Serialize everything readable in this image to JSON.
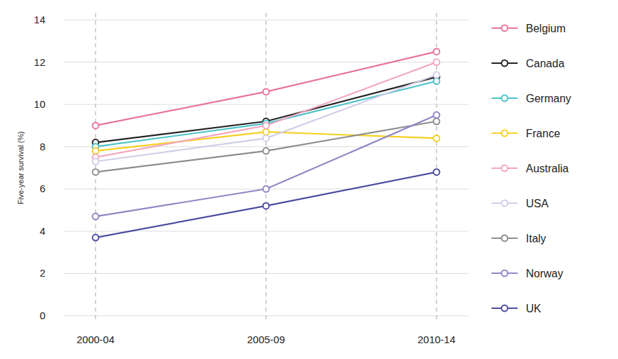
{
  "chart_data": {
    "type": "line",
    "y_label": "Five-year survival (%)",
    "categories": [
      "2000-04",
      "2005-09",
      "2010-14"
    ],
    "series": [
      {
        "name": "Belgium",
        "color": "#e8739a",
        "values": [
          9.0,
          10.6,
          12.5
        ]
      },
      {
        "name": "Canada",
        "color": "#222222",
        "values": [
          8.2,
          9.2,
          11.3
        ]
      },
      {
        "name": "Germany",
        "color": "#4cc3c9",
        "values": [
          8.0,
          9.1,
          11.1
        ]
      },
      {
        "name": "France",
        "color": "#f5d020",
        "values": [
          7.8,
          8.7,
          8.4
        ]
      },
      {
        "name": "Australia",
        "color": "#f2a6c0",
        "values": [
          7.5,
          9.0,
          12.0
        ]
      },
      {
        "name": "USA",
        "color": "#d2cde8",
        "values": [
          7.3,
          8.4,
          11.4
        ]
      },
      {
        "name": "Italy",
        "color": "#8c8c8c",
        "values": [
          6.8,
          7.8,
          9.2
        ]
      },
      {
        "name": "Norway",
        "color": "#8d86c4",
        "values": [
          4.7,
          6.0,
          9.5
        ]
      },
      {
        "name": "UK",
        "color": "#4b4ba0",
        "values": [
          3.7,
          5.2,
          6.8
        ]
      }
    ],
    "ylim": [
      0,
      14
    ],
    "yticks": [
      0,
      2,
      4,
      6,
      8,
      10,
      12,
      14
    ],
    "grid": true,
    "legend": "right",
    "marker": "circle",
    "line_style": "solid"
  }
}
